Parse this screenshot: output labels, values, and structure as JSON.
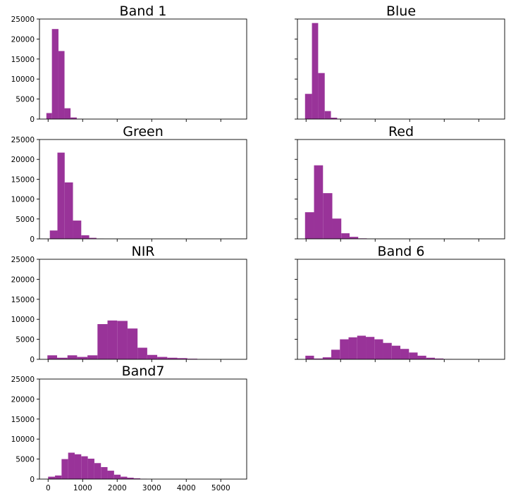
{
  "chart_data": [
    {
      "type": "bar",
      "title": "Band 1",
      "xlim": [
        -250,
        5750
      ],
      "ylim": [
        0,
        25000
      ],
      "x_ticks": [
        0,
        1000,
        2000,
        3000,
        4000,
        5000
      ],
      "y_ticks": [
        0,
        5000,
        10000,
        15000,
        20000,
        25000
      ],
      "show_x_labels": false,
      "show_y_labels": true,
      "bins": [
        [
          -50,
          110,
          1500
        ],
        [
          110,
          300,
          22500
        ],
        [
          300,
          475,
          17000
        ],
        [
          475,
          650,
          2700
        ],
        [
          650,
          830,
          400
        ],
        [
          830,
          1000,
          80
        ]
      ]
    },
    {
      "type": "bar",
      "title": "Blue",
      "xlim": [
        -250,
        5750
      ],
      "ylim": [
        0,
        25000
      ],
      "x_ticks": [
        0,
        1000,
        2000,
        3000,
        4000,
        5000
      ],
      "y_ticks": [
        0,
        5000,
        10000,
        15000,
        20000,
        25000
      ],
      "show_x_labels": false,
      "show_y_labels": false,
      "bins": [
        [
          -30,
          170,
          6300
        ],
        [
          170,
          350,
          24000
        ],
        [
          350,
          540,
          11500
        ],
        [
          540,
          720,
          2000
        ],
        [
          720,
          900,
          350
        ],
        [
          900,
          1080,
          60
        ]
      ]
    },
    {
      "type": "bar",
      "title": "Green",
      "xlim": [
        -250,
        5750
      ],
      "ylim": [
        0,
        25000
      ],
      "x_ticks": [
        0,
        1000,
        2000,
        3000,
        4000,
        5000
      ],
      "y_ticks": [
        0,
        5000,
        10000,
        15000,
        20000,
        25000
      ],
      "show_x_labels": false,
      "show_y_labels": true,
      "bins": [
        [
          50,
          270,
          2100
        ],
        [
          270,
          480,
          21700
        ],
        [
          480,
          720,
          14200
        ],
        [
          720,
          960,
          4600
        ],
        [
          960,
          1190,
          900
        ],
        [
          1190,
          1400,
          250
        ],
        [
          1400,
          1620,
          60
        ]
      ]
    },
    {
      "type": "bar",
      "title": "Red",
      "xlim": [
        -250,
        5750
      ],
      "ylim": [
        0,
        25000
      ],
      "x_ticks": [
        0,
        1000,
        2000,
        3000,
        4000,
        5000
      ],
      "y_ticks": [
        0,
        5000,
        10000,
        15000,
        20000,
        25000
      ],
      "show_x_labels": false,
      "show_y_labels": false,
      "bins": [
        [
          -30,
          230,
          6700
        ],
        [
          230,
          490,
          18500
        ],
        [
          490,
          760,
          11500
        ],
        [
          760,
          1020,
          5100
        ],
        [
          1020,
          1260,
          1400
        ],
        [
          1260,
          1510,
          500
        ],
        [
          1510,
          1760,
          120
        ]
      ]
    },
    {
      "type": "bar",
      "title": "NIR",
      "xlim": [
        -250,
        5750
      ],
      "ylim": [
        0,
        25000
      ],
      "x_ticks": [
        0,
        1000,
        2000,
        3000,
        4000,
        5000
      ],
      "y_ticks": [
        0,
        5000,
        10000,
        15000,
        20000,
        25000
      ],
      "show_x_labels": false,
      "show_y_labels": true,
      "bins": [
        [
          -20,
          260,
          1000
        ],
        [
          260,
          560,
          400
        ],
        [
          560,
          840,
          1000
        ],
        [
          840,
          1140,
          600
        ],
        [
          1140,
          1430,
          1000
        ],
        [
          1430,
          1720,
          8800
        ],
        [
          1720,
          2000,
          9700
        ],
        [
          2000,
          2300,
          9600
        ],
        [
          2300,
          2590,
          7700
        ],
        [
          2590,
          2870,
          2900
        ],
        [
          2870,
          3160,
          1100
        ],
        [
          3160,
          3450,
          600
        ],
        [
          3450,
          3740,
          400
        ],
        [
          3740,
          4030,
          300
        ],
        [
          4030,
          4320,
          150
        ],
        [
          4320,
          4610,
          60
        ]
      ]
    },
    {
      "type": "bar",
      "title": "Band 6",
      "xlim": [
        -250,
        5750
      ],
      "ylim": [
        0,
        25000
      ],
      "x_ticks": [
        0,
        1000,
        2000,
        3000,
        4000,
        5000
      ],
      "y_ticks": [
        0,
        5000,
        10000,
        15000,
        20000,
        25000
      ],
      "show_x_labels": false,
      "show_y_labels": false,
      "bins": [
        [
          -20,
          230,
          900
        ],
        [
          230,
          480,
          200
        ],
        [
          480,
          730,
          500
        ],
        [
          730,
          980,
          2400
        ],
        [
          980,
          1230,
          5000
        ],
        [
          1230,
          1480,
          5500
        ],
        [
          1480,
          1730,
          5900
        ],
        [
          1730,
          1980,
          5600
        ],
        [
          1980,
          2230,
          5000
        ],
        [
          2230,
          2480,
          4100
        ],
        [
          2480,
          2730,
          3400
        ],
        [
          2730,
          2980,
          2600
        ],
        [
          2980,
          3230,
          1700
        ],
        [
          3230,
          3480,
          900
        ],
        [
          3480,
          3730,
          400
        ],
        [
          3730,
          3980,
          200
        ],
        [
          3980,
          4230,
          80
        ],
        [
          4230,
          4480,
          40
        ]
      ]
    },
    {
      "type": "bar",
      "title": "Band7",
      "xlim": [
        -250,
        5750
      ],
      "ylim": [
        0,
        25000
      ],
      "x_ticks": [
        0,
        1000,
        2000,
        3000,
        4000,
        5000
      ],
      "y_ticks": [
        0,
        5000,
        10000,
        15000,
        20000,
        25000
      ],
      "show_x_labels": true,
      "show_y_labels": true,
      "bins": [
        [
          0,
          200,
          600
        ],
        [
          200,
          390,
          900
        ],
        [
          390,
          580,
          5000
        ],
        [
          580,
          770,
          6600
        ],
        [
          770,
          960,
          6200
        ],
        [
          960,
          1150,
          5700
        ],
        [
          1150,
          1340,
          5100
        ],
        [
          1340,
          1530,
          4000
        ],
        [
          1530,
          1720,
          3000
        ],
        [
          1720,
          1910,
          2100
        ],
        [
          1910,
          2100,
          1100
        ],
        [
          2100,
          2290,
          600
        ],
        [
          2290,
          2480,
          350
        ],
        [
          2480,
          2670,
          200
        ],
        [
          2670,
          2860,
          80
        ]
      ]
    }
  ]
}
